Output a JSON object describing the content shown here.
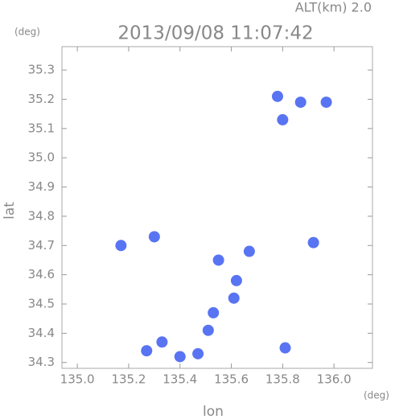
{
  "chart_data": {
    "type": "scatter",
    "title": "2013/09/08 11:07:42",
    "annotation": "ALT(km) 2.0",
    "xlabel": "lon",
    "ylabel": "lat",
    "xunit": "(deg)",
    "yunit": "(deg)",
    "xlim": [
      134.94,
      136.15
    ],
    "ylim": [
      34.28,
      35.38
    ],
    "xticks": [
      {
        "value": 135.0,
        "label": "135.0"
      },
      135.2,
      135.4,
      135.6,
      135.8,
      {
        "value": 136.0,
        "label": "136.0"
      }
    ],
    "yticks": [
      34.3,
      34.4,
      34.5,
      34.6,
      34.7,
      34.8,
      34.9,
      {
        "value": 35.0,
        "label": "35.0"
      },
      35.1,
      35.2,
      35.3
    ],
    "series": [
      {
        "color": "#3c5cf0",
        "x": [
          135.78,
          135.87,
          135.97,
          135.8,
          135.17,
          135.3,
          135.92,
          135.47,
          135.4,
          135.51,
          135.33,
          135.27,
          135.81,
          135.61,
          135.62,
          135.55,
          135.67,
          135.53
        ],
        "y": [
          35.21,
          35.19,
          35.19,
          35.13,
          34.7,
          34.73,
          34.71,
          34.33,
          34.32,
          34.41,
          34.37,
          34.34,
          34.35,
          34.52,
          34.58,
          34.65,
          34.68,
          34.47
        ]
      }
    ]
  }
}
